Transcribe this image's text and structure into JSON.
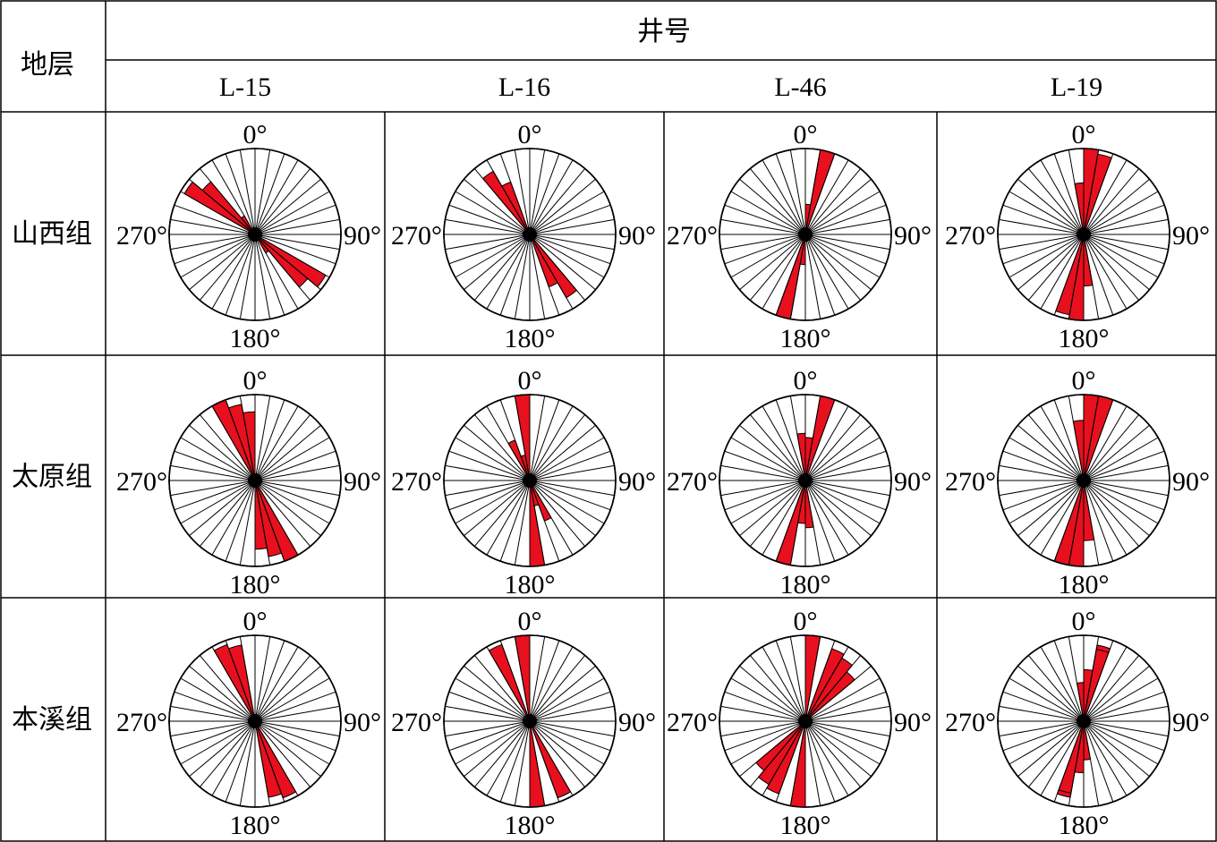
{
  "table": {
    "row_header": "地层",
    "column_group_header": "井号"
  },
  "chart_data": {
    "type": "rose",
    "sector_width_deg": 10,
    "bidirectional": true,
    "radius_max": 1,
    "direction_labels": [
      "0°",
      "90°",
      "180°",
      "270°"
    ],
    "wells": [
      "L-15",
      "L-16",
      "L-46",
      "L-19"
    ],
    "formations": [
      "山西组",
      "太原组",
      "本溪组"
    ],
    "cells": [
      {
        "formation": "山西组",
        "well": "L-15",
        "petals": [
          {
            "dir": 305,
            "r": 0.95
          },
          {
            "dir": 315,
            "r": 0.8
          },
          {
            "dir": 325,
            "r": 0.25
          }
        ]
      },
      {
        "formation": "山西组",
        "well": "L-16",
        "petals": [
          {
            "dir": 325,
            "r": 0.85
          },
          {
            "dir": 335,
            "r": 0.65
          }
        ]
      },
      {
        "formation": "山西组",
        "well": "L-46",
        "petals": [
          {
            "dir": 5,
            "r": 0.35
          },
          {
            "dir": 15,
            "r": 0.95
          },
          {
            "dir": 195,
            "r": 1.0
          }
        ]
      },
      {
        "formation": "山西组",
        "well": "L-19",
        "petals": [
          {
            "dir": 5,
            "r": 1.0
          },
          {
            "dir": 15,
            "r": 0.95
          },
          {
            "dir": 355,
            "r": 0.6
          }
        ]
      },
      {
        "formation": "太原组",
        "well": "L-15",
        "petals": [
          {
            "dir": 335,
            "r": 1.0
          },
          {
            "dir": 345,
            "r": 0.9
          },
          {
            "dir": 355,
            "r": 0.8
          }
        ]
      },
      {
        "formation": "太原组",
        "well": "L-16",
        "petals": [
          {
            "dir": 335,
            "r": 0.5
          },
          {
            "dir": 355,
            "r": 1.0
          },
          {
            "dir": 345,
            "r": 0.3
          }
        ]
      },
      {
        "formation": "太原组",
        "well": "L-46",
        "petals": [
          {
            "dir": 5,
            "r": 0.5
          },
          {
            "dir": 15,
            "r": 1.0
          },
          {
            "dir": 355,
            "r": 0.55
          }
        ]
      },
      {
        "formation": "太原组",
        "well": "L-19",
        "petals": [
          {
            "dir": 5,
            "r": 1.0
          },
          {
            "dir": 15,
            "r": 1.0
          },
          {
            "dir": 355,
            "r": 0.7
          }
        ]
      },
      {
        "formation": "本溪组",
        "well": "L-15",
        "petals": [
          {
            "dir": 335,
            "r": 0.95
          },
          {
            "dir": 345,
            "r": 0.9
          }
        ]
      },
      {
        "formation": "本溪组",
        "well": "L-16",
        "petals": [
          {
            "dir": 335,
            "r": 0.95
          },
          {
            "dir": 355,
            "r": 1.0
          }
        ]
      },
      {
        "formation": "本溪组",
        "well": "L-46",
        "petals": [
          {
            "dir": 5,
            "r": 1.0
          },
          {
            "dir": 25,
            "r": 0.9
          },
          {
            "dir": 215,
            "r": 0.85
          },
          {
            "dir": 225,
            "r": 0.75
          }
        ]
      },
      {
        "formation": "本溪组",
        "well": "L-19",
        "petals": [
          {
            "dir": 5,
            "r": 0.6
          },
          {
            "dir": 15,
            "r": 0.9
          },
          {
            "dir": 355,
            "r": 0.45
          },
          {
            "dir": 195,
            "r": 0.85
          }
        ]
      }
    ],
    "colors": {
      "petal_fill": "#e8101e",
      "petal_stroke": "#000000",
      "background": "#ffffff"
    },
    "legend": "none"
  }
}
